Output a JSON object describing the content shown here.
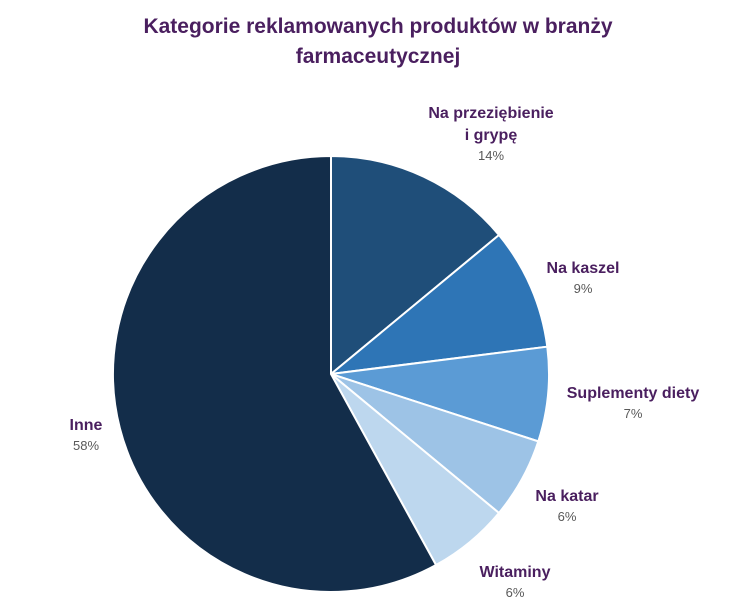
{
  "chart_data": {
    "type": "pie",
    "title_line1": "Kategorie reklamowanych produktów w branży",
    "title_line2": "farmaceutycznej",
    "slices": [
      {
        "name_lines": [
          "Na przeziębienie",
          "i grypę"
        ],
        "value_label": "14%",
        "value": 14,
        "color": "#1f4e79"
      },
      {
        "name_lines": [
          "Na kaszel"
        ],
        "value_label": "9%",
        "value": 9,
        "color": "#2e75b6"
      },
      {
        "name_lines": [
          "Suplementy diety"
        ],
        "value_label": "7%",
        "value": 7,
        "color": "#5b9bd5"
      },
      {
        "name_lines": [
          "Na katar"
        ],
        "value_label": "6%",
        "value": 6,
        "color": "#9dc3e6"
      },
      {
        "name_lines": [
          "Witaminy"
        ],
        "value_label": "6%",
        "value": 6,
        "color": "#bdd7ee"
      },
      {
        "name_lines": [
          "Inne"
        ],
        "value_label": "58%",
        "value": 58,
        "color": "#132d4a"
      }
    ]
  }
}
